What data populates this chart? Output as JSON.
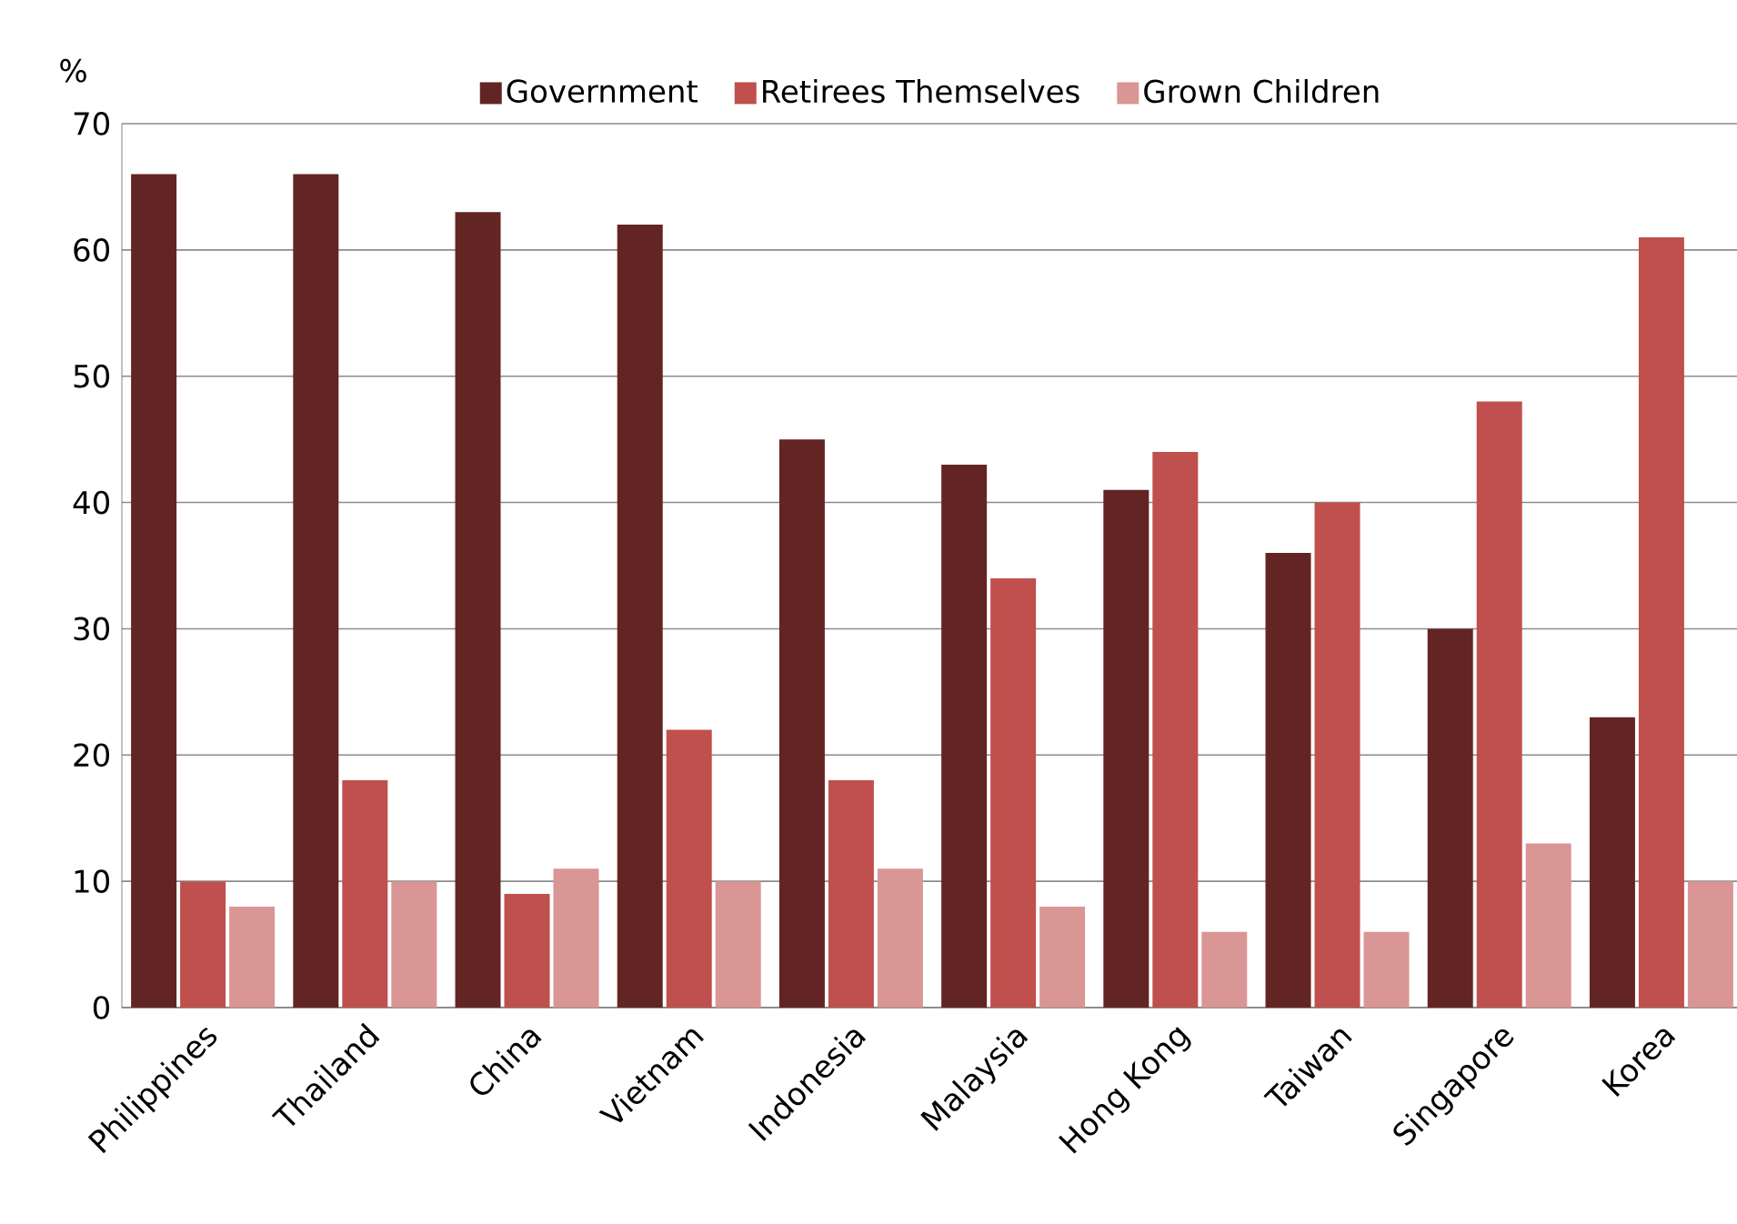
{
  "chart_data": {
    "type": "bar",
    "ylabel": "%",
    "categories": [
      "Philippines",
      "Thailand",
      "China",
      "Vietnam",
      "Indonesia",
      "Malaysia",
      "Hong Kong",
      "Taiwan",
      "Singapore",
      "Korea"
    ],
    "series": [
      {
        "name": "Government",
        "color": "#632523",
        "values": [
          66,
          66,
          63,
          62,
          45,
          43,
          41,
          36,
          30,
          23
        ]
      },
      {
        "name": "Retirees Themselves",
        "color": "#c0504d",
        "values": [
          10,
          18,
          9,
          22,
          18,
          34,
          44,
          40,
          48,
          61
        ]
      },
      {
        "name": "Grown Children",
        "color": "#d99694",
        "values": [
          8,
          10,
          11,
          10,
          11,
          8,
          6,
          6,
          13,
          10
        ]
      }
    ],
    "ylim": [
      0,
      70
    ],
    "yticks": [
      0,
      10,
      20,
      30,
      40,
      50,
      60,
      70
    ],
    "grid": "y",
    "legend": "top"
  }
}
